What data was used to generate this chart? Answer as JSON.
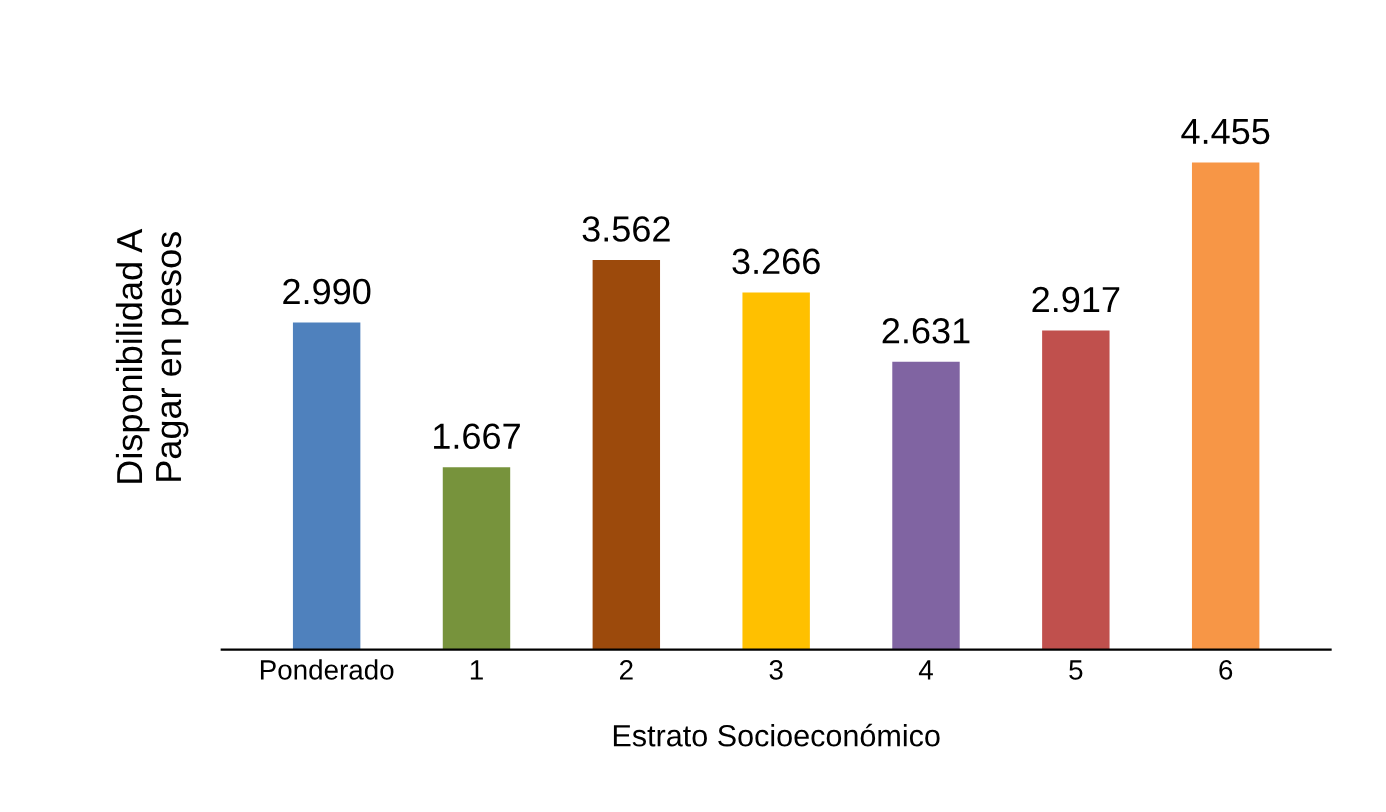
{
  "chart_data": {
    "type": "bar",
    "xlabel": "Estrato Socioeconómico",
    "ylabel": "Disponibilidad A\nPagar en pesos",
    "categories": [
      "Ponderado",
      "1",
      "2",
      "3",
      "4",
      "5",
      "6"
    ],
    "values": [
      2990,
      1667,
      3562,
      3266,
      2631,
      2917,
      4455
    ],
    "value_labels": [
      "2.990",
      "1.667",
      "3.562",
      "3.266",
      "2.631",
      "2.917",
      "4.455"
    ],
    "colors": [
      "#4f81bd",
      "#77933c",
      "#9c4a0c",
      "#ffc000",
      "#8064a2",
      "#c0504d",
      "#f79646"
    ],
    "grid": false,
    "legend": false
  }
}
